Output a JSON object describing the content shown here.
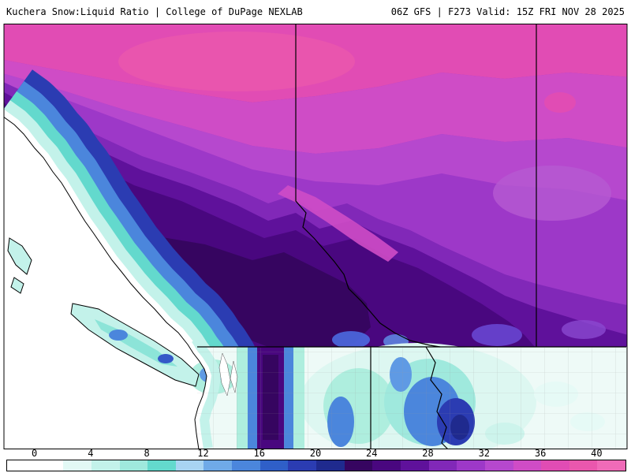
{
  "header": {
    "left": "Kuchera Snow:Liquid Ratio | College of DuPage NEXLAB",
    "right": "06Z GFS | F273 Valid: 15Z FRI NOV 28 2025"
  },
  "product": {
    "parameter": "Kuchera Snow:Liquid Ratio",
    "source": "College of DuPage NEXLAB",
    "model_run": "06Z GFS",
    "forecast_hour": "F273",
    "valid_time": "15Z FRI NOV 28 2025"
  },
  "colorbar": {
    "ticks": [
      "0",
      "4",
      "8",
      "12",
      "16",
      "20",
      "24",
      "28",
      "32",
      "36",
      "40"
    ],
    "tick_values": [
      0,
      4,
      8,
      12,
      16,
      20,
      24,
      28,
      32,
      36,
      40
    ],
    "colors": [
      "#ffffff",
      "#ffffff",
      "#e2f9f5",
      "#c3f2ea",
      "#9fe9dd",
      "#63d9cd",
      "#a8d4f2",
      "#6faae8",
      "#4b86dc",
      "#2f5fc8",
      "#2b3cb2",
      "#1f2a8e",
      "#360560",
      "#49077f",
      "#5f119b",
      "#8128b8",
      "#9d38c8",
      "#b648ce",
      "#cf4cc6",
      "#e14cb4",
      "#ea57ad",
      "#f06bb8"
    ]
  }
}
